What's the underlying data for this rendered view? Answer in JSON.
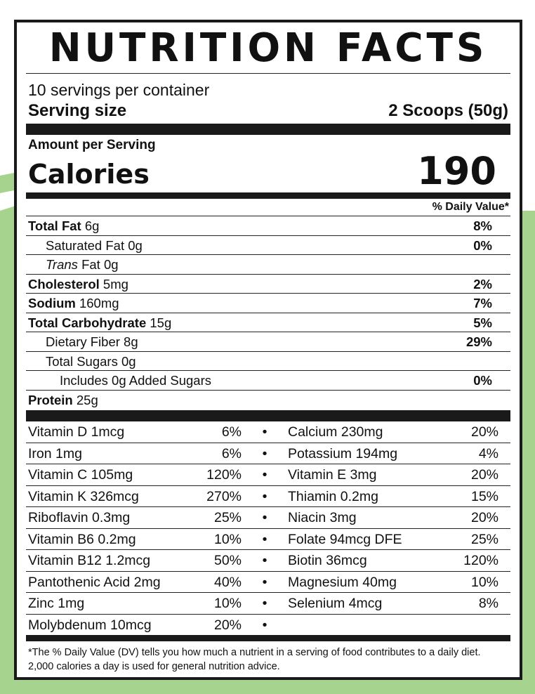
{
  "colors": {
    "background_green": "#a6d48f",
    "border": "#1a1a1a"
  },
  "title": "NUTRITION FACTS",
  "servings_per_container": "10 servings per container",
  "serving_size": {
    "label": "Serving size",
    "value": "2 Scoops (50g)"
  },
  "amount_per_serving": "Amount per Serving",
  "calories": {
    "label": "Calories",
    "value": "190"
  },
  "daily_value_header": "% Daily Value*",
  "nutrients": [
    {
      "name": "Total Fat",
      "amount": "6g",
      "dv": "8%"
    },
    {
      "name": "Saturated Fat",
      "amount": "0g",
      "dv": "0%"
    },
    {
      "name": "Trans",
      "name_suffix": "Fat",
      "amount": "0g",
      "dv": ""
    },
    {
      "name": "Cholesterol",
      "amount": "5mg",
      "dv": "2%"
    },
    {
      "name": "Sodium",
      "amount": "160mg",
      "dv": "7%"
    },
    {
      "name": "Total Carbohydrate",
      "amount": "15g",
      "dv": "5%"
    },
    {
      "name": "Dietary Fiber",
      "amount": "8g",
      "dv": "29%"
    },
    {
      "name": "Total Sugars",
      "amount": "0g",
      "dv": ""
    },
    {
      "name": "Includes 0g Added Sugars",
      "amount": "",
      "dv": "0%"
    },
    {
      "name": "Protein",
      "amount": "25g",
      "dv": ""
    }
  ],
  "vitamins": [
    {
      "left": "Vitamin D 1mcg",
      "left_dv": "6%",
      "right": "Calcium 230mg",
      "right_dv": "20%"
    },
    {
      "left": "Iron 1mg",
      "left_dv": "6%",
      "right": "Potassium 194mg",
      "right_dv": "4%"
    },
    {
      "left": "Vitamin C 105mg",
      "left_dv": "120%",
      "right": "Vitamin E 3mg",
      "right_dv": "20%"
    },
    {
      "left": "Vitamin K 326mcg",
      "left_dv": "270%",
      "right": "Thiamin 0.2mg",
      "right_dv": "15%"
    },
    {
      "left": "Riboflavin 0.3mg",
      "left_dv": "25%",
      "right": "Niacin 3mg",
      "right_dv": "20%"
    },
    {
      "left": "Vitamin B6 0.2mg",
      "left_dv": "10%",
      "right": "Folate 94mcg DFE",
      "right_dv": "25%"
    },
    {
      "left": "Vitamin B12 1.2mcg",
      "left_dv": "50%",
      "right": "Biotin 36mcg",
      "right_dv": "120%"
    },
    {
      "left": "Pantothenic Acid 2mg",
      "left_dv": "40%",
      "right": "Magnesium 40mg",
      "right_dv": "10%"
    },
    {
      "left": "Zinc 1mg",
      "left_dv": "10%",
      "right": "Selenium 4mcg",
      "right_dv": "8%"
    },
    {
      "left": "Molybdenum 10mcg",
      "left_dv": "20%",
      "right": "",
      "right_dv": ""
    }
  ],
  "bullet": "•",
  "footnote": "*The % Daily Value (DV) tells you how much a nutrient in a serving of food contributes to a daily diet. 2,000 calories a day is used for general nutrition advice."
}
